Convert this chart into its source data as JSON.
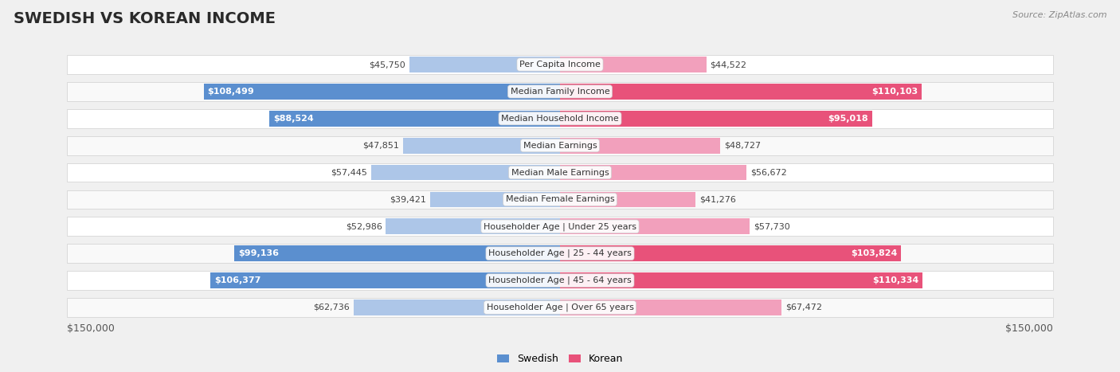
{
  "title": "SWEDISH VS KOREAN INCOME",
  "source": "Source: ZipAtlas.com",
  "categories": [
    "Per Capita Income",
    "Median Family Income",
    "Median Household Income",
    "Median Earnings",
    "Median Male Earnings",
    "Median Female Earnings",
    "Householder Age | Under 25 years",
    "Householder Age | 25 - 44 years",
    "Householder Age | 45 - 64 years",
    "Householder Age | Over 65 years"
  ],
  "swedish_values": [
    45750,
    108499,
    88524,
    47851,
    57445,
    39421,
    52986,
    99136,
    106377,
    62736
  ],
  "korean_values": [
    44522,
    110103,
    95018,
    48727,
    56672,
    41276,
    57730,
    103824,
    110334,
    67472
  ],
  "swedish_color_light": "#adc6e8",
  "swedish_color_dark": "#5b8fcf",
  "korean_color_light": "#f2a0bc",
  "korean_color_dark": "#e8527a",
  "max_val": 150000,
  "bg_color": "#f0f0f0",
  "row_bg_odd": "#f9f9f9",
  "row_bg_even": "#ffffff",
  "label_bg": "#eeeeee",
  "title_color": "#2a2a2a",
  "source_color": "#888888",
  "value_dark_threshold": 85000,
  "title_fontsize": 14,
  "bar_fontsize": 8,
  "cat_fontsize": 8
}
